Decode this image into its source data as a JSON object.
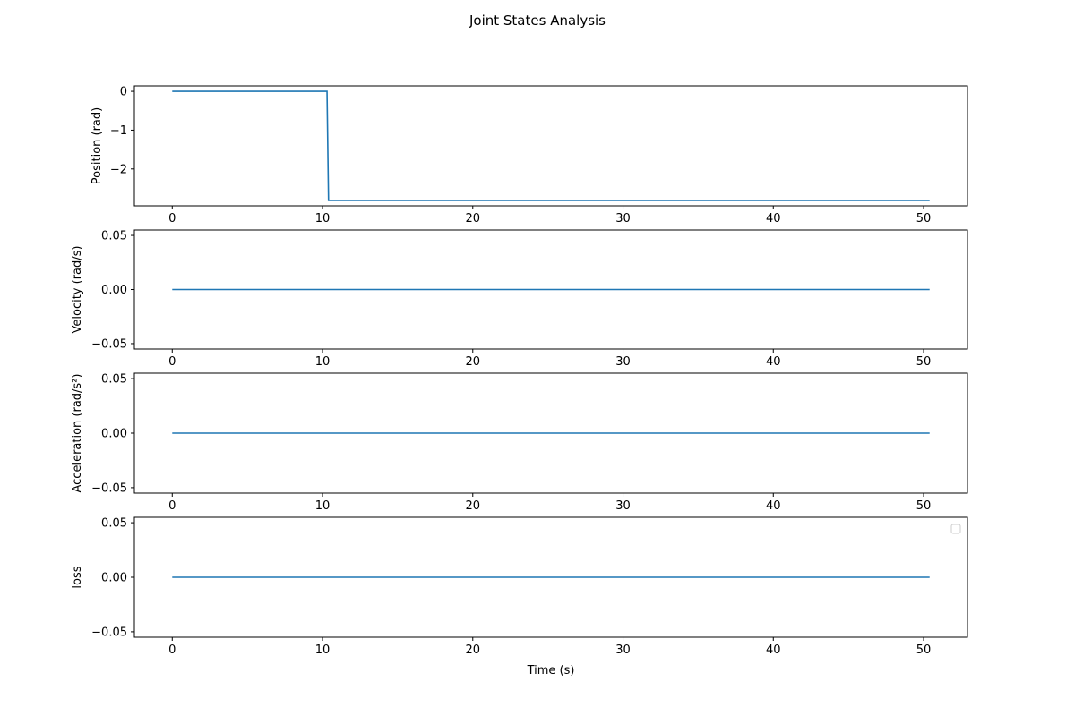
{
  "chart_data": {
    "type": "line",
    "title": "Joint States Analysis",
    "xlabel": "Time (s)",
    "colors": {
      "line": "#1f77b4",
      "axes": "#000000",
      "background": "#ffffff"
    },
    "subplots": [
      {
        "name": "position",
        "ylabel": "Position (rad)",
        "xlim": [
          -2.52,
          52.92
        ],
        "ylim": [
          -2.95,
          0.14
        ],
        "xticks": [
          0,
          10,
          20,
          30,
          40,
          50
        ],
        "xtick_labels": [
          "0",
          "10",
          "20",
          "30",
          "40",
          "50"
        ],
        "yticks": [
          0,
          -1,
          -2
        ],
        "ytick_labels": [
          "0",
          "−1",
          "−2"
        ],
        "series": [
          {
            "name": "position",
            "x": [
              0,
              10.3,
              10.4,
              50.4
            ],
            "y": [
              0,
              0,
              -2.81,
              -2.81
            ]
          }
        ],
        "legend": false
      },
      {
        "name": "velocity",
        "ylabel": "Velocity (rad/s)",
        "xlim": [
          -2.52,
          52.92
        ],
        "ylim": [
          -0.055,
          0.055
        ],
        "xticks": [
          0,
          10,
          20,
          30,
          40,
          50
        ],
        "xtick_labels": [
          "0",
          "10",
          "20",
          "30",
          "40",
          "50"
        ],
        "yticks": [
          0.05,
          0,
          -0.05
        ],
        "ytick_labels": [
          "0.05",
          "0.00",
          "−0.05"
        ],
        "series": [
          {
            "name": "velocity",
            "x": [
              0,
              50.4
            ],
            "y": [
              0,
              0
            ]
          }
        ],
        "legend": false
      },
      {
        "name": "acceleration",
        "ylabel": "Acceleration (rad/s²)",
        "xlim": [
          -2.52,
          52.92
        ],
        "ylim": [
          -0.055,
          0.055
        ],
        "xticks": [
          0,
          10,
          20,
          30,
          40,
          50
        ],
        "xtick_labels": [
          "0",
          "10",
          "20",
          "30",
          "40",
          "50"
        ],
        "yticks": [
          0.05,
          0,
          -0.05
        ],
        "ytick_labels": [
          "0.05",
          "0.00",
          "−0.05"
        ],
        "series": [
          {
            "name": "acceleration",
            "x": [
              0,
              50.4
            ],
            "y": [
              0,
              0
            ]
          }
        ],
        "legend": false
      },
      {
        "name": "loss",
        "ylabel": "loss",
        "xlim": [
          -2.52,
          52.92
        ],
        "ylim": [
          -0.055,
          0.055
        ],
        "xticks": [
          0,
          10,
          20,
          30,
          40,
          50
        ],
        "xtick_labels": [
          "0",
          "10",
          "20",
          "30",
          "40",
          "50"
        ],
        "yticks": [
          0.05,
          0,
          -0.05
        ],
        "ytick_labels": [
          "0.05",
          "0.00",
          "−0.05"
        ],
        "series": [
          {
            "name": "loss",
            "x": [
              0,
              50.4
            ],
            "y": [
              0,
              0
            ]
          }
        ],
        "legend": "upper right (empty)"
      }
    ]
  }
}
